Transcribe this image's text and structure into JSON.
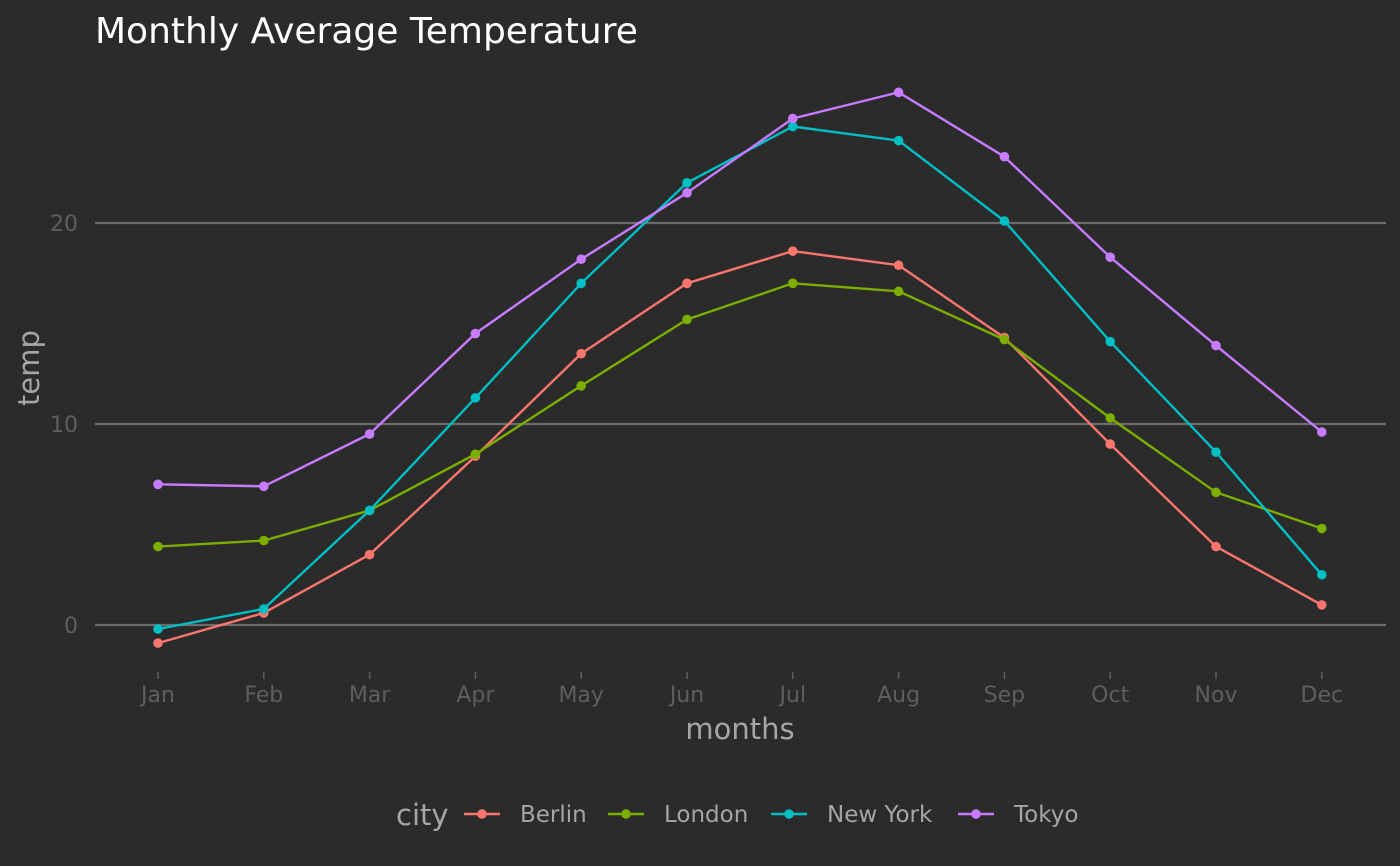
{
  "chart_data": {
    "type": "line",
    "title": "Monthly Average Temperature",
    "xlabel": "months",
    "ylabel": "temp",
    "categories": [
      "Jan",
      "Feb",
      "Mar",
      "Apr",
      "May",
      "Jun",
      "Jul",
      "Aug",
      "Sep",
      "Oct",
      "Nov",
      "Dec"
    ],
    "yticks": [
      0,
      10,
      20
    ],
    "ylim": [
      -2.5,
      27.5
    ],
    "legend": {
      "title": "city",
      "placement": "bottom"
    },
    "series": [
      {
        "name": "Berlin",
        "color": "#f8766d",
        "values": [
          -0.9,
          0.6,
          3.5,
          8.4,
          13.5,
          17.0,
          18.6,
          17.9,
          14.3,
          9.0,
          3.9,
          1.0
        ]
      },
      {
        "name": "London",
        "color": "#7cae00",
        "values": [
          3.9,
          4.2,
          5.7,
          8.5,
          11.9,
          15.2,
          17.0,
          16.6,
          14.2,
          10.3,
          6.6,
          4.8
        ]
      },
      {
        "name": "New York",
        "color": "#00bfc4",
        "values": [
          -0.2,
          0.8,
          5.7,
          11.3,
          17.0,
          22.0,
          24.8,
          24.1,
          20.1,
          14.1,
          8.6,
          2.5
        ]
      },
      {
        "name": "Tokyo",
        "color": "#c77cff",
        "values": [
          7.0,
          6.9,
          9.5,
          14.5,
          18.2,
          21.5,
          25.2,
          26.5,
          23.3,
          18.3,
          13.9,
          9.6
        ]
      }
    ]
  }
}
